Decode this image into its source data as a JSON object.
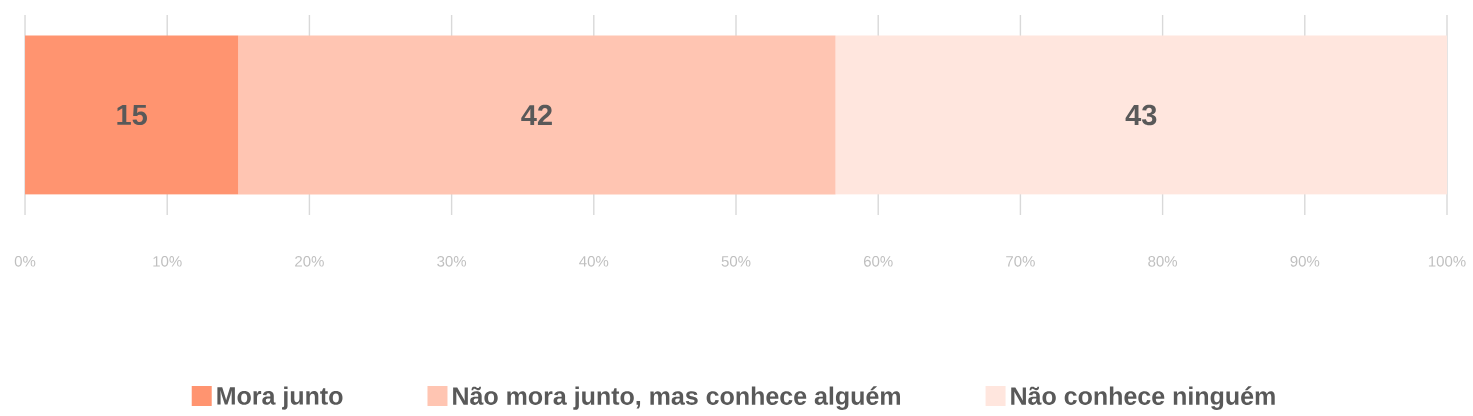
{
  "chart_data": {
    "type": "bar",
    "orientation": "horizontal",
    "stacked": true,
    "categories": [
      null
    ],
    "series": [
      {
        "name": "Mora junto",
        "color": "#ff9470",
        "values": [
          15
        ]
      },
      {
        "name": "Não mora junto, mas conhece alguém",
        "color": "#ffc5b2",
        "values": [
          42
        ]
      },
      {
        "name": "Não conhece ninguém",
        "color": "#ffe6de",
        "values": [
          43
        ]
      }
    ],
    "xlim": [
      0,
      100
    ],
    "xticks": [
      {
        "value": 0,
        "label": "0%"
      },
      {
        "value": 10,
        "label": "10%"
      },
      {
        "value": 20,
        "label": "20%"
      },
      {
        "value": 30,
        "label": "30%"
      },
      {
        "value": 40,
        "label": "40%"
      },
      {
        "value": 50,
        "label": "50%"
      },
      {
        "value": 60,
        "label": "60%"
      },
      {
        "value": 70,
        "label": "70%"
      },
      {
        "value": 80,
        "label": "80%"
      },
      {
        "value": 90,
        "label": "90%"
      },
      {
        "value": 100,
        "label": "100%"
      }
    ],
    "grid": "x",
    "legend": "bottom",
    "data_labels": true
  }
}
